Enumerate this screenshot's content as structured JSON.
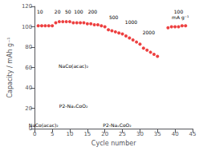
{
  "chart_data": {
    "type": "scatter",
    "xlabel": "Cycle number",
    "ylabel": "Capacity / mAh g⁻¹",
    "x": [
      1,
      2,
      3,
      4,
      5,
      6,
      7,
      8,
      9,
      10,
      11,
      12,
      13,
      14,
      15,
      16,
      17,
      18,
      19,
      20,
      21,
      22,
      23,
      24,
      25,
      26,
      27,
      28,
      29,
      30,
      31,
      32,
      33,
      34,
      35,
      38,
      39,
      40,
      41,
      42,
      43
    ],
    "values": [
      101,
      101,
      101,
      101,
      101,
      104,
      105,
      105,
      105,
      105,
      104,
      104,
      104,
      104,
      103,
      103,
      102,
      102,
      101,
      100,
      97,
      96,
      95,
      94,
      93,
      91,
      89,
      87,
      85,
      83,
      79,
      77,
      75,
      73,
      71,
      99,
      100,
      100,
      100,
      101,
      101
    ],
    "color": "#e81010",
    "xlim": [
      0,
      45
    ],
    "ylim": [
      0,
      120
    ],
    "xticks": [
      0,
      5,
      10,
      15,
      20,
      25,
      30,
      35,
      40,
      45
    ],
    "yticks": [
      0,
      20,
      40,
      60,
      80,
      100,
      120
    ],
    "grid": false,
    "annotations": [
      {
        "text": "10",
        "x": 1.5,
        "y": 117.5
      },
      {
        "text": "20",
        "x": 6.5,
        "y": 117.5
      },
      {
        "text": "50",
        "x": 9.5,
        "y": 117.5
      },
      {
        "text": "100",
        "x": 12.5,
        "y": 117.5
      },
      {
        "text": "200",
        "x": 16.5,
        "y": 117.5
      },
      {
        "text": "500",
        "x": 22.5,
        "y": 112
      },
      {
        "text": "1000",
        "x": 27.5,
        "y": 107
      },
      {
        "text": "2000",
        "x": 32.5,
        "y": 97
      },
      {
        "text": "100",
        "x": 41.0,
        "y": 117.5
      },
      {
        "text": "mA g⁻¹",
        "x": 41.5,
        "y": 112
      },
      {
        "text": "NaCo(acac)₂",
        "x": 11.05,
        "y": 59
      },
      {
        "text": "P2-NaₓCoO₂",
        "x": 11.05,
        "y": 20
      },
      {
        "text": "NaCo(acac)₂",
        "x": 2.5,
        "y": 1.5
      },
      {
        "text": "P2-NaₓCoO₂",
        "x": 23.5,
        "y": 1.5
      }
    ]
  }
}
